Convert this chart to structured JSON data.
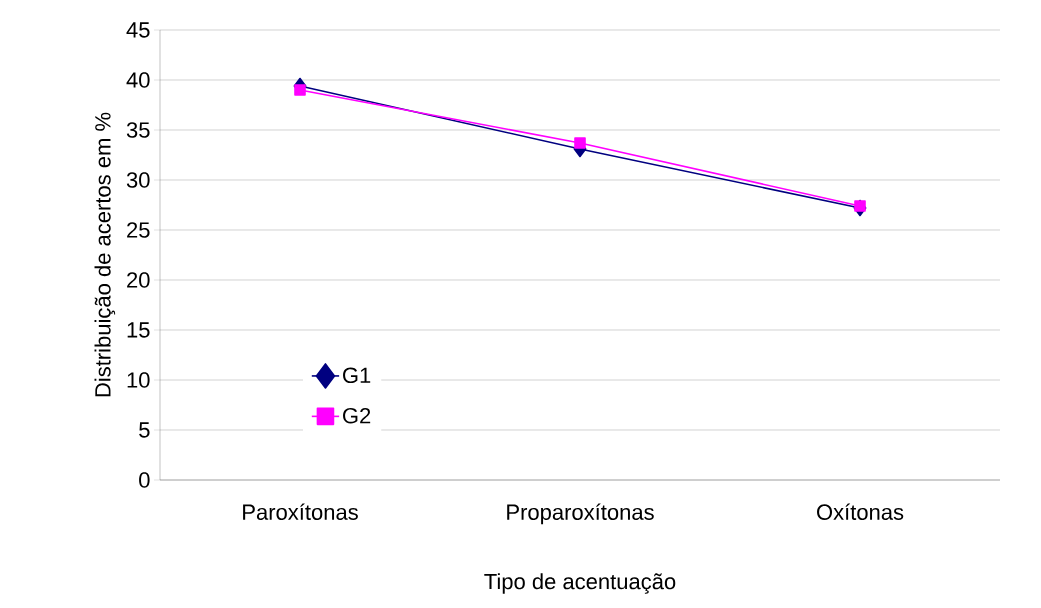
{
  "chart_data": {
    "type": "line",
    "xlabel": "Tipo de acentuação",
    "ylabel": "Distribuição de acertos em %",
    "categories": [
      "Paroxítonas",
      "Proparoxítonas",
      "Oxítonas"
    ],
    "series": [
      {
        "name": "G1",
        "color": "#000080",
        "values": [
          39.4,
          33.1,
          27.2
        ],
        "marker": "diamond"
      },
      {
        "name": "G2",
        "color": "#ff00ff",
        "values": [
          39.0,
          33.7,
          27.4
        ],
        "marker": "square"
      }
    ],
    "ylim": [
      0,
      45
    ],
    "yticks": [
      0,
      5,
      10,
      15,
      20,
      25,
      30,
      35,
      40,
      45
    ],
    "grid": "y",
    "legend": "bottom left"
  }
}
